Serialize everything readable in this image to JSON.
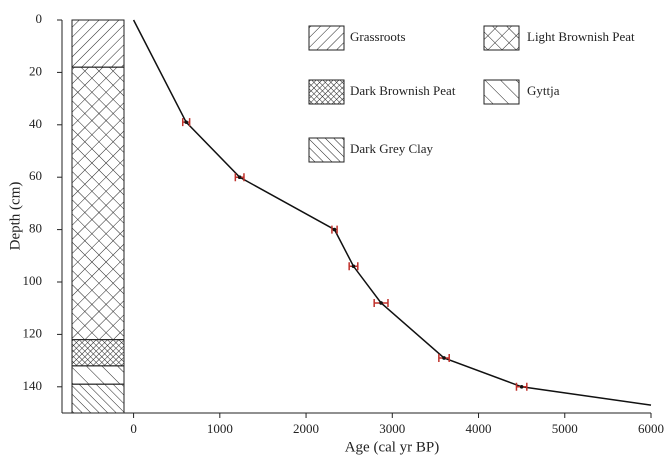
{
  "chart_data": {
    "type": "line",
    "x_label": "Age (cal yr BP)",
    "y_label": "Depth (cm)",
    "xlim": [
      -830,
      6000
    ],
    "xticks": [
      0,
      1000,
      2000,
      3000,
      4000,
      5000,
      6000
    ],
    "ylim": [
      0,
      150
    ],
    "yticks": [
      0,
      20,
      40,
      60,
      80,
      100,
      120,
      140
    ],
    "y_inverted": true,
    "series": [
      {
        "color": "#111111",
        "error_color": "#c0302a",
        "x": [
          0,
          610,
          1230,
          2330,
          2550,
          2870,
          3600,
          4500,
          6000
        ],
        "values": [
          0,
          39,
          60,
          80,
          94,
          108,
          129,
          140,
          147
        ],
        "xerr": [
          null,
          40,
          50,
          30,
          50,
          80,
          60,
          60,
          null
        ]
      }
    ],
    "lithology": [
      {
        "name": "Grassroots",
        "top": 0,
        "bottom": 18
      },
      {
        "name": "Light Brownish Peat",
        "top": 18,
        "bottom": 122
      },
      {
        "name": "Dark Brownish Peat",
        "top": 122,
        "bottom": 132
      },
      {
        "name": "Gyttja",
        "top": 132,
        "bottom": 139
      },
      {
        "name": "Dark Grey Clay",
        "top": 139,
        "bottom": 150
      }
    ]
  }
}
